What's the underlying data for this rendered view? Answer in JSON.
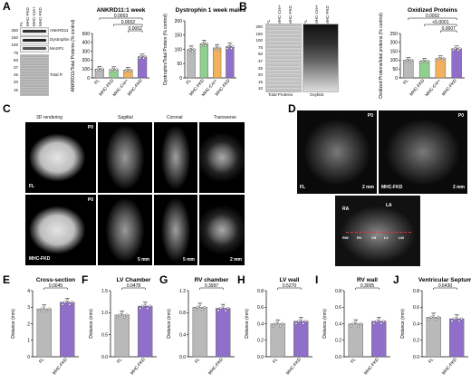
{
  "panels": {
    "A": {
      "letter": "A",
      "blot_labels": [
        "ANKRD11",
        "Dystrophin",
        "MASP1",
        "Total P."
      ],
      "lane_labels": [
        "FL",
        "MHC-FKD",
        "MHC-Cre+",
        "MHC-FKD"
      ],
      "mw_markers": [
        "250",
        "150",
        "100",
        "75",
        "50",
        "37",
        "25",
        "20",
        "15"
      ]
    },
    "B": {
      "letter": "B",
      "mw_markers": [
        "250",
        "150",
        "100",
        "75",
        "50",
        "37",
        "25",
        "20",
        "15",
        "10"
      ],
      "lane_labels": [
        "FL",
        "MHC-Cre+",
        "MHC-FKD",
        "FL",
        "MHC-Cre+",
        "MHC-FKD"
      ],
      "captions": [
        "Total Proteins",
        "Oxyblot"
      ]
    },
    "C": {
      "letter": "C",
      "col_titles": [
        "3D rendering",
        "Sagittal",
        "Coronal",
        "Transverse"
      ],
      "row_labels": [
        "FL",
        "MHC-FKD"
      ],
      "age": "P0",
      "scales": [
        "5 mm",
        "5 mm",
        "2 mm"
      ]
    },
    "D": {
      "letter": "D",
      "labels": [
        "P0",
        "P0",
        "FL",
        "MHC-FKD",
        "2 mm",
        "2 mm",
        "RA",
        "LA",
        "RW",
        "RV",
        "VS",
        "LV",
        "LW"
      ]
    },
    "E": {
      "letter": "E"
    },
    "F": {
      "letter": "F"
    },
    "G": {
      "letter": "G"
    },
    "H": {
      "letter": "H"
    },
    "I": {
      "letter": "I"
    },
    "J": {
      "letter": "J"
    }
  },
  "chart_data": [
    {
      "id": "ankrd",
      "type": "bar",
      "title": "ANKRD11:1 week",
      "ylabel": "ANKRD11/Total Proteins (% control)",
      "categories": [
        "FL",
        "MHC-FKD",
        "MHC-Cre+",
        "MHC-FKD"
      ],
      "values": [
        100,
        95,
        90,
        240
      ],
      "colors": [
        "#b9b9b9",
        "#8fcf8f",
        "#f2b15c",
        "#8f6fc9"
      ],
      "ylim": [
        0,
        500
      ],
      "yticks": [
        "0",
        "100",
        "200",
        "300",
        "400",
        "500"
      ],
      "pvalues": [
        "0.0003",
        "0.0002",
        "0.0002"
      ]
    },
    {
      "id": "dys",
      "type": "bar",
      "title": "Dystrophin 1 week males",
      "ylabel": "Dystrophin/Total Protein (% control)",
      "categories": [
        "FL",
        "MHC-FKD",
        "MHC-Cre+",
        "MHC-FKD"
      ],
      "values": [
        100,
        120,
        105,
        110
      ],
      "colors": [
        "#b9b9b9",
        "#8fcf8f",
        "#f2b15c",
        "#8f6fc9"
      ],
      "ylim": [
        0,
        200
      ],
      "yticks": [
        "0",
        "50",
        "100",
        "150",
        "200"
      ],
      "pvalues": []
    },
    {
      "id": "oxi",
      "type": "bar",
      "title": "Oxidized Proteins",
      "ylabel": "Oxidized Proteins/total proteins (% control)",
      "categories": [
        "FL",
        "MHC-FKD",
        "MHC-Cre+",
        "MHC-FKD"
      ],
      "values": [
        100,
        95,
        110,
        165
      ],
      "colors": [
        "#b9b9b9",
        "#8fcf8f",
        "#f2b15c",
        "#8f6fc9"
      ],
      "ylim": [
        0,
        250
      ],
      "yticks": [
        "0",
        "50",
        "100",
        "150",
        "200",
        "250"
      ],
      "pvalues": [
        "0.0002",
        "<0.0001",
        "0.0007"
      ]
    },
    {
      "id": "E",
      "type": "bar",
      "title": "Cross-section",
      "ylabel": "Distance (mm)",
      "categories": [
        "FL",
        "MHC-FKD"
      ],
      "values": [
        2.9,
        3.3
      ],
      "colors": [
        "#b9b9b9",
        "#8f6fc9"
      ],
      "ylim": [
        0,
        4
      ],
      "yticks": [
        "0",
        "1",
        "2",
        "3",
        "4"
      ],
      "pvalues": [
        "0.0045"
      ]
    },
    {
      "id": "F",
      "type": "bar",
      "title": "LV Chamber",
      "ylabel": "Distance (mm)",
      "categories": [
        "FL",
        "MHC-FKD"
      ],
      "values": [
        0.95,
        1.15
      ],
      "colors": [
        "#b9b9b9",
        "#8f6fc9"
      ],
      "ylim": [
        0,
        1.5
      ],
      "yticks": [
        "0.0",
        "0.5",
        "1.0",
        "1.5"
      ],
      "pvalues": [
        "0.0478"
      ]
    },
    {
      "id": "G",
      "type": "bar",
      "title": "RV chamber",
      "ylabel": "Distance (mm)",
      "categories": [
        "FL",
        "MHC-FKD"
      ],
      "values": [
        0.9,
        0.88
      ],
      "colors": [
        "#b9b9b9",
        "#8f6fc9"
      ],
      "ylim": [
        0,
        1.2
      ],
      "yticks": [
        "0.0",
        "0.4",
        "0.8",
        "1.2"
      ],
      "pvalues": [
        "0.3997"
      ]
    },
    {
      "id": "H",
      "type": "bar",
      "title": "LV wall",
      "ylabel": "Distance (mm)",
      "categories": [
        "FL",
        "MHC-FKD"
      ],
      "values": [
        0.4,
        0.43
      ],
      "colors": [
        "#b9b9b9",
        "#8f6fc9"
      ],
      "ylim": [
        0,
        0.8
      ],
      "yticks": [
        "0.0",
        "0.2",
        "0.4",
        "0.6",
        "0.8"
      ],
      "pvalues": [
        "0.5270"
      ]
    },
    {
      "id": "I",
      "type": "bar",
      "title": "RV wall",
      "ylabel": "Distance (mm)",
      "categories": [
        "FL",
        "MHC-FKD"
      ],
      "values": [
        0.4,
        0.43
      ],
      "colors": [
        "#b9b9b9",
        "#8f6fc9"
      ],
      "ylim": [
        0,
        0.8
      ],
      "yticks": [
        "0.0",
        "0.2",
        "0.4",
        "0.6",
        "0.8"
      ],
      "pvalues": [
        "0.3005"
      ]
    },
    {
      "id": "J",
      "type": "bar",
      "title": "Ventricular Septum",
      "ylabel": "Distance (mm)",
      "categories": [
        "FL",
        "MHC-FKD"
      ],
      "values": [
        0.48,
        0.46
      ],
      "colors": [
        "#b9b9b9",
        "#8f6fc9"
      ],
      "ylim": [
        0,
        0.8
      ],
      "yticks": [
        "0.0",
        "0.2",
        "0.4",
        "0.6",
        "0.8"
      ],
      "pvalues": [
        "0.6430"
      ]
    }
  ]
}
